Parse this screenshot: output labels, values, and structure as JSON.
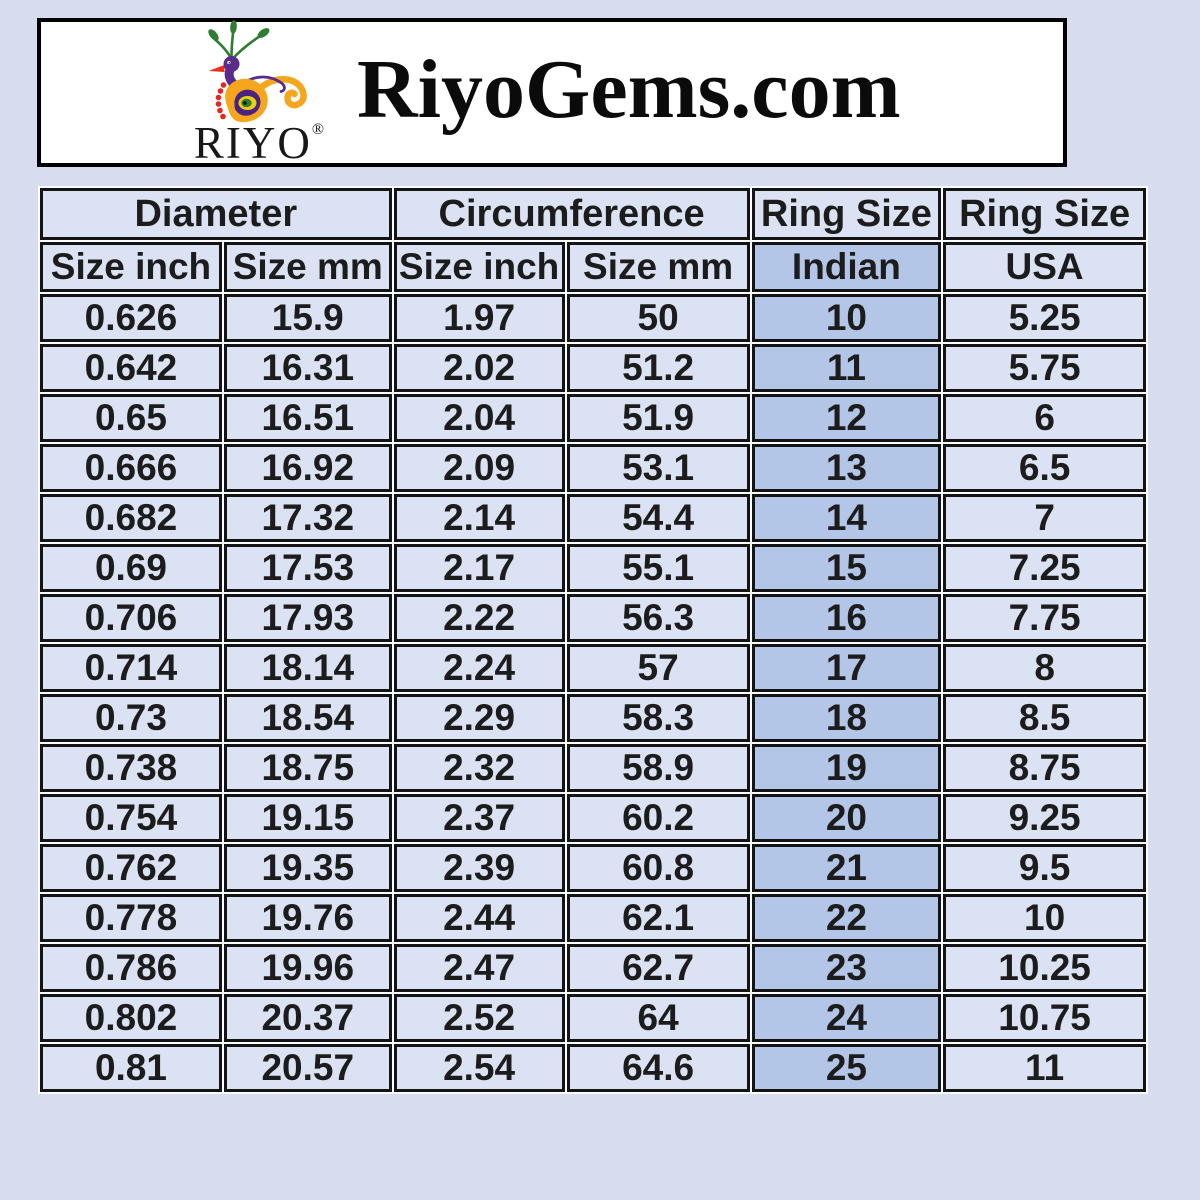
{
  "page": {
    "background": "#d7ddee"
  },
  "header": {
    "brand_title": "RiyoGems.com",
    "logo_text": "RIYO",
    "logo_reg_mark": "®",
    "logo_icon": "peacock-icon",
    "colors": {
      "peacock_purple": "#5a2b8c",
      "peacock_orange": "#f6a61d",
      "peacock_green": "#2e7d32",
      "peacock_red": "#e8251c",
      "box_background": "#ffffff",
      "box_border": "#000000"
    }
  },
  "table": {
    "group_headers": [
      {
        "label": "Diameter",
        "colspan": 2
      },
      {
        "label": "Circumference",
        "colspan": 2
      },
      {
        "label": "Ring Size",
        "colspan": 1
      },
      {
        "label": "Ring Size",
        "colspan": 1
      }
    ],
    "sub_headers": [
      {
        "label": "Size inch",
        "highlighted": false
      },
      {
        "label": "Size mm",
        "highlighted": false
      },
      {
        "label": "Size inch",
        "highlighted": false
      },
      {
        "label": "Size mm",
        "highlighted": false
      },
      {
        "label": "Indian",
        "highlighted": true
      },
      {
        "label": "USA",
        "highlighted": false
      }
    ],
    "highlighted_column_index": 4,
    "cell_color": "#dae2f3",
    "highlight_color": "#b4c6e7",
    "border_color": "#141414",
    "rows": [
      [
        "0.626",
        "15.9",
        "1.97",
        "50",
        "10",
        "5.25"
      ],
      [
        "0.642",
        "16.31",
        "2.02",
        "51.2",
        "11",
        "5.75"
      ],
      [
        "0.65",
        "16.51",
        "2.04",
        "51.9",
        "12",
        "6"
      ],
      [
        "0.666",
        "16.92",
        "2.09",
        "53.1",
        "13",
        "6.5"
      ],
      [
        "0.682",
        "17.32",
        "2.14",
        "54.4",
        "14",
        "7"
      ],
      [
        "0.69",
        "17.53",
        "2.17",
        "55.1",
        "15",
        "7.25"
      ],
      [
        "0.706",
        "17.93",
        "2.22",
        "56.3",
        "16",
        "7.75"
      ],
      [
        "0.714",
        "18.14",
        "2.24",
        "57",
        "17",
        "8"
      ],
      [
        "0.73",
        "18.54",
        "2.29",
        "58.3",
        "18",
        "8.5"
      ],
      [
        "0.738",
        "18.75",
        "2.32",
        "58.9",
        "19",
        "8.75"
      ],
      [
        "0.754",
        "19.15",
        "2.37",
        "60.2",
        "20",
        "9.25"
      ],
      [
        "0.762",
        "19.35",
        "2.39",
        "60.8",
        "21",
        "9.5"
      ],
      [
        "0.778",
        "19.76",
        "2.44",
        "62.1",
        "22",
        "10"
      ],
      [
        "0.786",
        "19.96",
        "2.47",
        "62.7",
        "23",
        "10.25"
      ],
      [
        "0.802",
        "20.37",
        "2.52",
        "64",
        "24",
        "10.75"
      ],
      [
        "0.81",
        "20.57",
        "2.54",
        "64.6",
        "25",
        "11"
      ]
    ]
  },
  "chart_data": {
    "type": "table",
    "title": "RiyoGems.com ring size conversion chart",
    "column_groups": [
      "Diameter",
      "Diameter",
      "Circumference",
      "Circumference",
      "Ring Size",
      "Ring Size"
    ],
    "columns": [
      "Diameter Size inch",
      "Diameter Size mm",
      "Circumference Size inch",
      "Circumference Size mm",
      "Ring Size Indian",
      "Ring Size USA"
    ],
    "rows": [
      [
        0.626,
        15.9,
        1.97,
        50,
        10,
        5.25
      ],
      [
        0.642,
        16.31,
        2.02,
        51.2,
        11,
        5.75
      ],
      [
        0.65,
        16.51,
        2.04,
        51.9,
        12,
        6
      ],
      [
        0.666,
        16.92,
        2.09,
        53.1,
        13,
        6.5
      ],
      [
        0.682,
        17.32,
        2.14,
        54.4,
        14,
        7
      ],
      [
        0.69,
        17.53,
        2.17,
        55.1,
        15,
        7.25
      ],
      [
        0.706,
        17.93,
        2.22,
        56.3,
        16,
        7.75
      ],
      [
        0.714,
        18.14,
        2.24,
        57,
        17,
        8
      ],
      [
        0.73,
        18.54,
        2.29,
        58.3,
        18,
        8.5
      ],
      [
        0.738,
        18.75,
        2.32,
        58.9,
        19,
        8.75
      ],
      [
        0.754,
        19.15,
        2.37,
        60.2,
        20,
        9.25
      ],
      [
        0.762,
        19.35,
        2.39,
        60.8,
        21,
        9.5
      ],
      [
        0.778,
        19.76,
        2.44,
        62.1,
        22,
        10
      ],
      [
        0.786,
        19.96,
        2.47,
        62.7,
        23,
        10.25
      ],
      [
        0.802,
        20.37,
        2.52,
        64,
        24,
        10.75
      ],
      [
        0.81,
        20.57,
        2.54,
        64.6,
        25,
        11
      ]
    ]
  }
}
